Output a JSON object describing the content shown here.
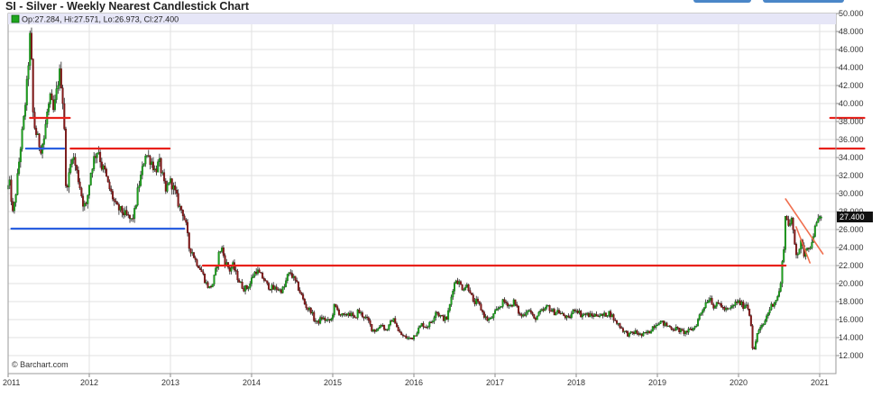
{
  "chart_title": "SI - Silver - Weekly Nearest Candlestick Chart",
  "credit": "© Barchart.com",
  "colors": {
    "up": "#1fa51f",
    "down": "#8b1a1a",
    "wick": "#222222",
    "resistance": "#e8201a",
    "support": "#2a5fe0",
    "trend": "#f07050",
    "grid": "#e2e2e2",
    "header_band": "#e6e6f7",
    "tab": "#4a86c8"
  },
  "chart_data": {
    "type": "candlestick",
    "title": "SI - Silver - Weekly Nearest Candlestick Chart",
    "ohlc_legend": {
      "open": 27.284,
      "high": 27.571,
      "low": 26.973,
      "close": 27.4,
      "text": "Op:27.284, Hi:27.571, Lo:26.973, Cl:27.400"
    },
    "last_price_label": "27.400",
    "y_axis": {
      "min": 10,
      "max": 50,
      "position": "right",
      "ticks": [
        "12.000",
        "14.000",
        "16.000",
        "18.000",
        "20.000",
        "22.000",
        "24.000",
        "26.000",
        "28.000",
        "30.000",
        "32.000",
        "34.000",
        "36.000",
        "38.000",
        "40.000",
        "42.000",
        "44.000",
        "46.000",
        "48.000",
        "50.000"
      ]
    },
    "x_axis": {
      "min": 2011.0,
      "max": 2021.2,
      "ticks": [
        "2011",
        "2012",
        "2013",
        "2014",
        "2015",
        "2016",
        "2017",
        "2018",
        "2019",
        "2020",
        "2021"
      ]
    },
    "grid": true,
    "price_path": [
      [
        2011.0,
        30.5
      ],
      [
        2011.04,
        31.0
      ],
      [
        2011.08,
        27.5
      ],
      [
        2011.12,
        30.5
      ],
      [
        2011.17,
        35.0
      ],
      [
        2011.21,
        38.0
      ],
      [
        2011.25,
        42.0
      ],
      [
        2011.29,
        47.5
      ],
      [
        2011.31,
        44.0
      ],
      [
        2011.33,
        38.0
      ],
      [
        2011.37,
        36.5
      ],
      [
        2011.42,
        35.0
      ],
      [
        2011.46,
        36.0
      ],
      [
        2011.5,
        39.0
      ],
      [
        2011.54,
        40.5
      ],
      [
        2011.58,
        39.0
      ],
      [
        2011.62,
        41.5
      ],
      [
        2011.65,
        43.5
      ],
      [
        2011.68,
        42.0
      ],
      [
        2011.71,
        38.0
      ],
      [
        2011.73,
        30.5
      ],
      [
        2011.77,
        32.0
      ],
      [
        2011.81,
        34.5
      ],
      [
        2011.85,
        33.0
      ],
      [
        2011.9,
        31.0
      ],
      [
        2011.94,
        29.0
      ],
      [
        2011.98,
        28.5
      ],
      [
        2012.04,
        32.5
      ],
      [
        2012.08,
        34.0
      ],
      [
        2012.13,
        35.0
      ],
      [
        2012.17,
        33.0
      ],
      [
        2012.21,
        32.5
      ],
      [
        2012.25,
        31.0
      ],
      [
        2012.29,
        30.0
      ],
      [
        2012.35,
        28.5
      ],
      [
        2012.42,
        28.0
      ],
      [
        2012.48,
        27.5
      ],
      [
        2012.54,
        27.0
      ],
      [
        2012.58,
        28.0
      ],
      [
        2012.62,
        30.5
      ],
      [
        2012.67,
        32.5
      ],
      [
        2012.71,
        34.5
      ],
      [
        2012.75,
        34.0
      ],
      [
        2012.79,
        33.5
      ],
      [
        2012.83,
        32.5
      ],
      [
        2012.88,
        33.5
      ],
      [
        2012.92,
        32.0
      ],
      [
        2012.96,
        30.0
      ],
      [
        2013.0,
        31.5
      ],
      [
        2013.04,
        31.0
      ],
      [
        2013.08,
        30.0
      ],
      [
        2013.13,
        28.5
      ],
      [
        2013.17,
        28.0
      ],
      [
        2013.21,
        26.5
      ],
      [
        2013.25,
        24.0
      ],
      [
        2013.29,
        23.5
      ],
      [
        2013.33,
        22.5
      ],
      [
        2013.37,
        22.0
      ],
      [
        2013.42,
        21.0
      ],
      [
        2013.46,
        20.0
      ],
      [
        2013.5,
        19.5
      ],
      [
        2013.54,
        20.0
      ],
      [
        2013.58,
        21.5
      ],
      [
        2013.62,
        23.5
      ],
      [
        2013.65,
        24.0
      ],
      [
        2013.69,
        22.5
      ],
      [
        2013.75,
        21.5
      ],
      [
        2013.79,
        22.0
      ],
      [
        2013.83,
        21.0
      ],
      [
        2013.88,
        20.0
      ],
      [
        2013.92,
        19.5
      ],
      [
        2013.96,
        19.5
      ],
      [
        2014.0,
        20.0
      ],
      [
        2014.04,
        21.0
      ],
      [
        2014.08,
        21.5
      ],
      [
        2014.12,
        21.0
      ],
      [
        2014.17,
        20.5
      ],
      [
        2014.21,
        19.8
      ],
      [
        2014.25,
        19.6
      ],
      [
        2014.29,
        19.4
      ],
      [
        2014.33,
        19.5
      ],
      [
        2014.37,
        19.2
      ],
      [
        2014.42,
        19.5
      ],
      [
        2014.46,
        20.8
      ],
      [
        2014.5,
        21.2
      ],
      [
        2014.54,
        20.5
      ],
      [
        2014.58,
        19.8
      ],
      [
        2014.62,
        19.0
      ],
      [
        2014.67,
        17.8
      ],
      [
        2014.71,
        17.2
      ],
      [
        2014.75,
        17.0
      ],
      [
        2014.79,
        16.0
      ],
      [
        2014.83,
        15.6
      ],
      [
        2014.88,
        16.2
      ],
      [
        2014.92,
        16.0
      ],
      [
        2014.96,
        15.8
      ],
      [
        2015.0,
        16.0
      ],
      [
        2015.04,
        17.5
      ],
      [
        2015.08,
        17.0
      ],
      [
        2015.12,
        16.5
      ],
      [
        2015.17,
        16.3
      ],
      [
        2015.21,
        16.8
      ],
      [
        2015.25,
        16.5
      ],
      [
        2015.29,
        16.0
      ],
      [
        2015.33,
        17.0
      ],
      [
        2015.37,
        16.6
      ],
      [
        2015.42,
        16.2
      ],
      [
        2015.46,
        15.8
      ],
      [
        2015.5,
        15.0
      ],
      [
        2015.54,
        14.8
      ],
      [
        2015.58,
        15.0
      ],
      [
        2015.62,
        15.6
      ],
      [
        2015.67,
        14.8
      ],
      [
        2015.71,
        15.2
      ],
      [
        2015.75,
        16.0
      ],
      [
        2015.79,
        15.8
      ],
      [
        2015.83,
        14.6
      ],
      [
        2015.88,
        14.2
      ],
      [
        2015.92,
        14.0
      ],
      [
        2015.96,
        13.9
      ],
      [
        2016.0,
        14.0
      ],
      [
        2016.04,
        14.5
      ],
      [
        2016.08,
        15.0
      ],
      [
        2016.12,
        15.5
      ],
      [
        2016.17,
        15.2
      ],
      [
        2016.21,
        15.5
      ],
      [
        2016.25,
        16.0
      ],
      [
        2016.29,
        17.0
      ],
      [
        2016.33,
        16.5
      ],
      [
        2016.37,
        16.2
      ],
      [
        2016.42,
        16.0
      ],
      [
        2016.46,
        17.5
      ],
      [
        2016.5,
        19.5
      ],
      [
        2016.54,
        20.5
      ],
      [
        2016.58,
        20.0
      ],
      [
        2016.62,
        19.5
      ],
      [
        2016.67,
        19.8
      ],
      [
        2016.71,
        19.3
      ],
      [
        2016.75,
        17.8
      ],
      [
        2016.79,
        18.0
      ],
      [
        2016.83,
        17.5
      ],
      [
        2016.88,
        16.5
      ],
      [
        2016.92,
        16.0
      ],
      [
        2016.96,
        16.0
      ],
      [
        2017.0,
        16.5
      ],
      [
        2017.04,
        17.0
      ],
      [
        2017.08,
        17.5
      ],
      [
        2017.12,
        18.0
      ],
      [
        2017.17,
        17.8
      ],
      [
        2017.21,
        17.5
      ],
      [
        2017.25,
        18.0
      ],
      [
        2017.29,
        17.2
      ],
      [
        2017.33,
        16.4
      ],
      [
        2017.37,
        16.5
      ],
      [
        2017.42,
        17.2
      ],
      [
        2017.46,
        16.8
      ],
      [
        2017.5,
        16.0
      ],
      [
        2017.54,
        16.4
      ],
      [
        2017.58,
        16.8
      ],
      [
        2017.62,
        17.0
      ],
      [
        2017.67,
        17.5
      ],
      [
        2017.71,
        17.0
      ],
      [
        2017.75,
        16.8
      ],
      [
        2017.79,
        17.0
      ],
      [
        2017.83,
        16.6
      ],
      [
        2017.88,
        16.4
      ],
      [
        2017.92,
        16.0
      ],
      [
        2017.96,
        16.6
      ],
      [
        2018.0,
        17.2
      ],
      [
        2018.04,
        17.0
      ],
      [
        2018.08,
        16.5
      ],
      [
        2018.12,
        16.6
      ],
      [
        2018.17,
        16.5
      ],
      [
        2018.21,
        16.4
      ],
      [
        2018.25,
        16.5
      ],
      [
        2018.29,
        16.6
      ],
      [
        2018.33,
        16.4
      ],
      [
        2018.37,
        16.5
      ],
      [
        2018.42,
        16.8
      ],
      [
        2018.46,
        16.4
      ],
      [
        2018.5,
        15.8
      ],
      [
        2018.54,
        15.5
      ],
      [
        2018.58,
        15.0
      ],
      [
        2018.62,
        14.6
      ],
      [
        2018.67,
        14.3
      ],
      [
        2018.71,
        14.5
      ],
      [
        2018.75,
        14.6
      ],
      [
        2018.79,
        14.4
      ],
      [
        2018.83,
        14.2
      ],
      [
        2018.88,
        14.5
      ],
      [
        2018.92,
        14.6
      ],
      [
        2018.96,
        15.2
      ],
      [
        2019.0,
        15.5
      ],
      [
        2019.04,
        15.8
      ],
      [
        2019.08,
        15.6
      ],
      [
        2019.12,
        15.4
      ],
      [
        2019.17,
        15.2
      ],
      [
        2019.21,
        15.0
      ],
      [
        2019.25,
        15.0
      ],
      [
        2019.29,
        14.8
      ],
      [
        2019.33,
        14.6
      ],
      [
        2019.37,
        14.6
      ],
      [
        2019.42,
        14.8
      ],
      [
        2019.46,
        15.0
      ],
      [
        2019.5,
        15.5
      ],
      [
        2019.54,
        16.5
      ],
      [
        2019.58,
        17.2
      ],
      [
        2019.62,
        18.0
      ],
      [
        2019.67,
        18.5
      ],
      [
        2019.71,
        17.5
      ],
      [
        2019.75,
        17.6
      ],
      [
        2019.79,
        17.8
      ],
      [
        2019.83,
        17.2
      ],
      [
        2019.88,
        17.0
      ],
      [
        2019.92,
        17.2
      ],
      [
        2019.96,
        17.6
      ],
      [
        2020.0,
        18.0
      ],
      [
        2020.04,
        17.8
      ],
      [
        2020.08,
        17.5
      ],
      [
        2020.12,
        17.8
      ],
      [
        2020.17,
        16.0
      ],
      [
        2020.19,
        13.0
      ],
      [
        2020.21,
        12.5
      ],
      [
        2020.25,
        14.5
      ],
      [
        2020.29,
        15.0
      ],
      [
        2020.33,
        15.5
      ],
      [
        2020.37,
        16.5
      ],
      [
        2020.42,
        17.5
      ],
      [
        2020.46,
        18.0
      ],
      [
        2020.5,
        18.5
      ],
      [
        2020.54,
        20.0
      ],
      [
        2020.56,
        22.5
      ],
      [
        2020.58,
        24.5
      ],
      [
        2020.6,
        28.0
      ],
      [
        2020.62,
        27.0
      ],
      [
        2020.65,
        26.5
      ],
      [
        2020.67,
        27.0
      ],
      [
        2020.69,
        26.0
      ],
      [
        2020.71,
        24.5
      ],
      [
        2020.73,
        23.5
      ],
      [
        2020.75,
        23.5
      ],
      [
        2020.79,
        24.5
      ],
      [
        2020.83,
        23.2
      ],
      [
        2020.85,
        24.0
      ],
      [
        2020.88,
        24.5
      ],
      [
        2020.9,
        23.5
      ],
      [
        2020.92,
        24.8
      ],
      [
        2020.94,
        25.5
      ],
      [
        2020.96,
        26.0
      ],
      [
        2020.98,
        26.5
      ],
      [
        2021.0,
        27.0
      ],
      [
        2021.02,
        27.4
      ]
    ],
    "annotations": [
      {
        "kind": "horizontal",
        "color": "resistance",
        "y": 38.4,
        "x_from": 2011.27,
        "x_to": 2011.76
      },
      {
        "kind": "horizontal",
        "color": "resistance",
        "y": 35.0,
        "x_from": 2011.77,
        "x_to": 2012.99
      },
      {
        "kind": "horizontal",
        "color": "support",
        "y": 35.0,
        "x_from": 2011.22,
        "x_to": 2011.69
      },
      {
        "kind": "horizontal",
        "color": "support",
        "y": 26.1,
        "x_from": 2011.04,
        "x_to": 2013.17
      },
      {
        "kind": "horizontal",
        "color": "resistance",
        "y": 22.0,
        "x_from": 2013.4,
        "x_to": 2020.58
      },
      {
        "kind": "horizontal",
        "color": "resistance",
        "y": 38.4,
        "x_from": 2021.13,
        "x_to": 2021.55
      },
      {
        "kind": "horizontal",
        "color": "resistance",
        "y": 35.0,
        "x_from": 2021.0,
        "x_to": 2021.55
      },
      {
        "kind": "segment",
        "color": "trend",
        "x1": 2020.58,
        "y1": 29.4,
        "x2": 2021.04,
        "y2": 23.3
      },
      {
        "kind": "segment",
        "color": "trend",
        "x1": 2020.71,
        "y1": 26.3,
        "x2": 2020.88,
        "y2": 22.3
      }
    ]
  }
}
